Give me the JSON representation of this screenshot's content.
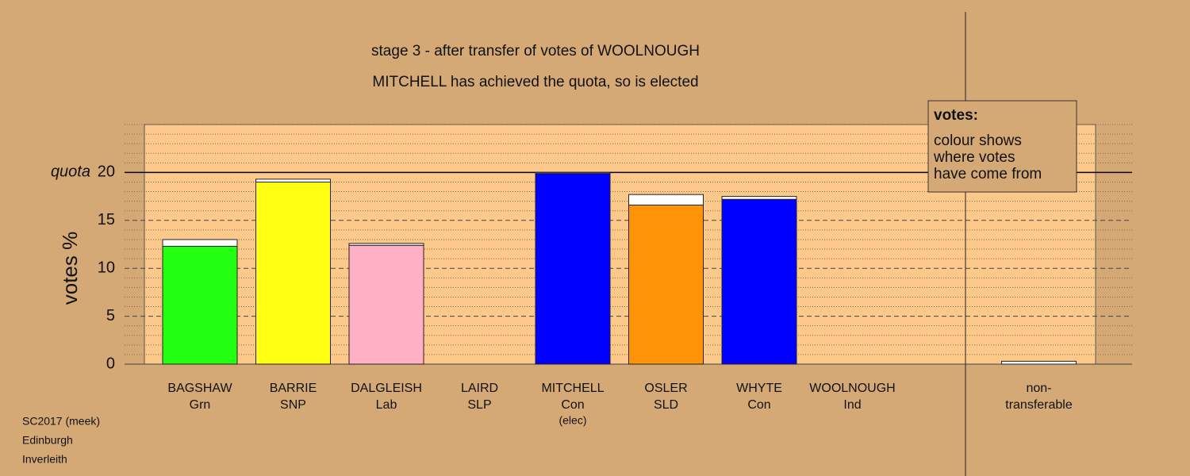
{
  "chart_data": {
    "type": "bar",
    "title": "stage 3 - after transfer of votes of WOOLNOUGH",
    "subtitle": "MITCHELL has achieved the quota, so is elected",
    "y_label": "votes %",
    "quota_label": "quota",
    "categories": [
      "BAGSHAW",
      "BARRIE",
      "DALGLEISH",
      "LAIRD",
      "MITCHELL",
      "OSLER",
      "WHYTE",
      "WOOLNOUGH",
      "non-"
    ],
    "parties": [
      "Grn",
      "SNP",
      "Lab",
      "SLP",
      "Con",
      "SLD",
      "Con",
      "Ind",
      "transferable"
    ],
    "status": [
      null,
      null,
      null,
      null,
      "(elec)",
      null,
      null,
      null,
      null
    ],
    "series": [
      {
        "colors": [
          "#22ff11",
          "#ffff14",
          "#ffb0c4",
          "#888888",
          "#0000ff",
          "#ff9408",
          "#0000ff",
          "#888888",
          "#ffffff"
        ],
        "values": [
          12.3,
          19.0,
          12.4,
          0,
          19.9,
          16.6,
          17.2,
          0,
          0
        ]
      },
      {
        "color": "#ffffff",
        "values": [
          0.7,
          0.3,
          0.2,
          0,
          0.1,
          1.1,
          0.3,
          0,
          0.3
        ]
      }
    ],
    "ylim": [
      0,
      25
    ],
    "yticks": [
      0,
      5,
      10,
      15,
      20
    ],
    "minor_yticks": [
      1,
      2,
      3,
      4,
      6,
      7,
      8,
      9,
      11,
      12,
      13,
      14,
      16,
      17,
      18,
      19,
      21,
      22,
      23,
      24,
      25
    ],
    "quota": 20,
    "grid": true,
    "legend_title": "votes:",
    "legend_lines": [
      "colour shows",
      "where votes",
      "have come from"
    ],
    "footer": [
      "SC2017 (meek)",
      "Edinburgh",
      "Inverleith"
    ]
  }
}
